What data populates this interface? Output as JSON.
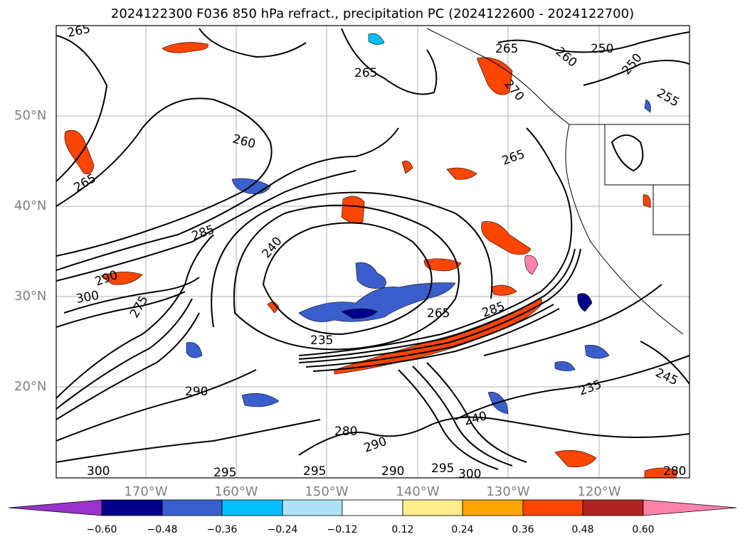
{
  "title": "2024122300 F036 850 hPa refract., precipitation PC (2024122600 - 2024122700)",
  "lat_labels": [
    "50°N",
    "40°N",
    "30°N",
    "20°N"
  ],
  "lon_labels": [
    "170°W",
    "160°W",
    "150°W",
    "140°W",
    "130°W",
    "120°W"
  ],
  "contour_labels": [
    "265",
    "265",
    "265",
    "265",
    "260",
    "250",
    "250",
    "255",
    "260",
    "265",
    "285",
    "265",
    "235",
    "240",
    "245",
    "235",
    "290",
    "295",
    "300",
    "290",
    "295",
    "300",
    "290",
    "280",
    "280",
    "295",
    "290",
    "300",
    "270",
    "285",
    "275",
    "240"
  ],
  "colorbar": {
    "ticks": [
      "−0.60",
      "−0.48",
      "−0.36",
      "−0.24",
      "−0.12",
      "0.12",
      "0.24",
      "0.36",
      "0.48",
      "0.60"
    ],
    "colors": [
      "#9a32cd",
      "#00008b",
      "#3a5fcd",
      "#00bfff",
      "#afe1fa",
      "#ffffff",
      "#ffec8b",
      "#ffa500",
      "#ff4500",
      "#b22222",
      "#ff82ab"
    ]
  }
}
